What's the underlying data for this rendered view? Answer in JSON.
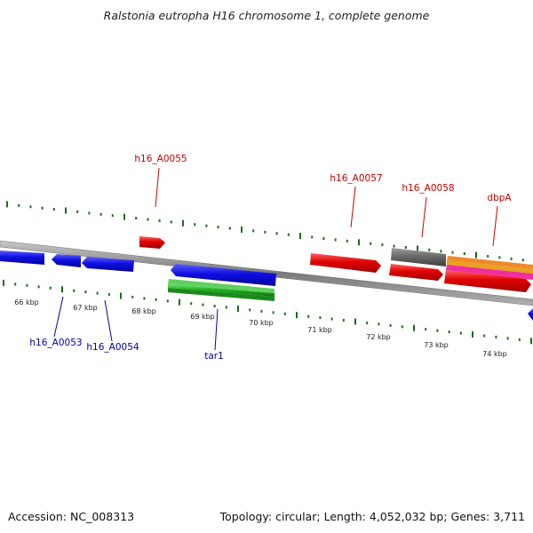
{
  "title": "Ralstonia eutropha H16 chromosome 1, complete genome",
  "accession": "Accession: NC_008313",
  "summary": "Topology: circular; Length: 4,052,032 bp; Genes: 3,711",
  "colors": {
    "forward_gene": "#e8000c",
    "reverse_gene": "#1414e0",
    "rna_gene": "#22b022",
    "pseudo_gene": "#6b6b6b",
    "tick": "#1a6e1a",
    "backbone": "#8a8a8a",
    "forward_label": "#c80000",
    "reverse_label": "#0000a8"
  },
  "scale_labels": [
    "66 kbp",
    "67 kbp",
    "68 kbp",
    "69 kbp",
    "70 kbp",
    "71 kbp",
    "72 kbp",
    "73 kbp",
    "74 kbp"
  ],
  "forward_gene_labels": [
    "h16_A0055",
    "h16_A0057",
    "h16_A0058",
    "dbpA"
  ],
  "reverse_gene_labels": [
    "h16_A0053",
    "h16_A0054",
    "tar1"
  ]
}
